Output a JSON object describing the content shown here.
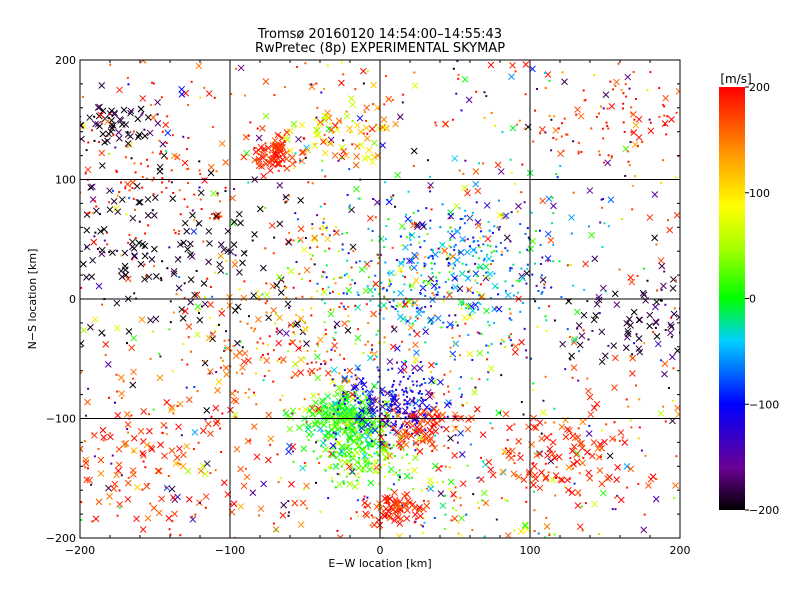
{
  "chart_data": {
    "type": "scatter",
    "title": "Tromsø 20160120 14:54:00–14:55:43",
    "subtitle": "RwPretec (8p) EXPERIMENTAL SKYMAP",
    "xlabel": "E−W location [km]",
    "ylabel": "N−S location [km]",
    "xlim": [
      -200,
      200
    ],
    "ylim": [
      -200,
      200
    ],
    "xticks": [
      "−200",
      "−100",
      "0",
      "100",
      "200"
    ],
    "yticks": [
      "−200",
      "−100",
      "0",
      "100",
      "200"
    ],
    "grid": true,
    "marker_types": [
      "x",
      "dot"
    ],
    "colorbar": {
      "label": "[m/s]",
      "range": [
        -200,
        200
      ],
      "ticks": [
        "200",
        "100",
        "0",
        "−100",
        "−200"
      ],
      "colormap": "black-purple-blue-cyan-green-yellow-orange-red"
    },
    "clusters": [
      {
        "x": 45,
        "y": 25,
        "spread": 40,
        "count": 420,
        "v_mean": -60,
        "v_sd": 45,
        "marker": "dot"
      },
      {
        "x": -25,
        "y": -100,
        "spread": 14,
        "count": 220,
        "v_mean": 15,
        "v_sd": 25,
        "marker": "x"
      },
      {
        "x": -10,
        "y": -130,
        "spread": 16,
        "count": 220,
        "v_mean": 25,
        "v_sd": 30,
        "marker": "dot"
      },
      {
        "x": 10,
        "y": -90,
        "spread": 20,
        "count": 260,
        "v_mean": -110,
        "v_sd": 25,
        "marker": "dot"
      },
      {
        "x": 30,
        "y": -110,
        "spread": 14,
        "count": 80,
        "v_mean": 180,
        "v_sd": 20,
        "marker": "x"
      },
      {
        "x": -145,
        "y": 35,
        "spread": 45,
        "count": 170,
        "v_mean": -195,
        "v_sd": 8,
        "marker": "x"
      },
      {
        "x": -180,
        "y": 145,
        "spread": 18,
        "count": 60,
        "v_mean": -190,
        "v_sd": 15,
        "marker": "x"
      },
      {
        "x": -70,
        "y": 122,
        "spread": 10,
        "count": 80,
        "v_mean": 185,
        "v_sd": 15,
        "marker": "x"
      },
      {
        "x": -25,
        "y": 135,
        "spread": 18,
        "count": 80,
        "v_mean": 110,
        "v_sd": 50,
        "marker": "x"
      },
      {
        "x": 175,
        "y": -20,
        "spread": 25,
        "count": 70,
        "v_mean": -190,
        "v_sd": 15,
        "marker": "x"
      },
      {
        "x": 120,
        "y": -130,
        "spread": 30,
        "count": 120,
        "v_mean": 185,
        "v_sd": 20,
        "marker": "x"
      },
      {
        "x": 50,
        "y": -175,
        "spread": 35,
        "count": 110,
        "v_mean": 60,
        "v_sd": 80,
        "marker": "dot"
      },
      {
        "x": -150,
        "y": -130,
        "spread": 40,
        "count": 130,
        "v_mean": 180,
        "v_sd": 25,
        "marker": "x"
      },
      {
        "x": 160,
        "y": 150,
        "spread": 35,
        "count": 90,
        "v_mean": 180,
        "v_sd": 25,
        "marker": "dot"
      },
      {
        "x": -160,
        "y": 100,
        "spread": 35,
        "count": 90,
        "v_mean": 180,
        "v_sd": 30,
        "marker": "dot"
      },
      {
        "x": 10,
        "y": -175,
        "spread": 10,
        "count": 70,
        "v_mean": 185,
        "v_sd": 15,
        "marker": "x"
      },
      {
        "x": -60,
        "y": -40,
        "spread": 40,
        "count": 150,
        "v_mean": 160,
        "v_sd": 40,
        "marker": "dot"
      },
      {
        "x": 0,
        "y": 0,
        "spread": 50,
        "count": 160,
        "v_mean": 70,
        "v_sd": 70,
        "marker": "dot"
      }
    ],
    "background_points": 850
  }
}
